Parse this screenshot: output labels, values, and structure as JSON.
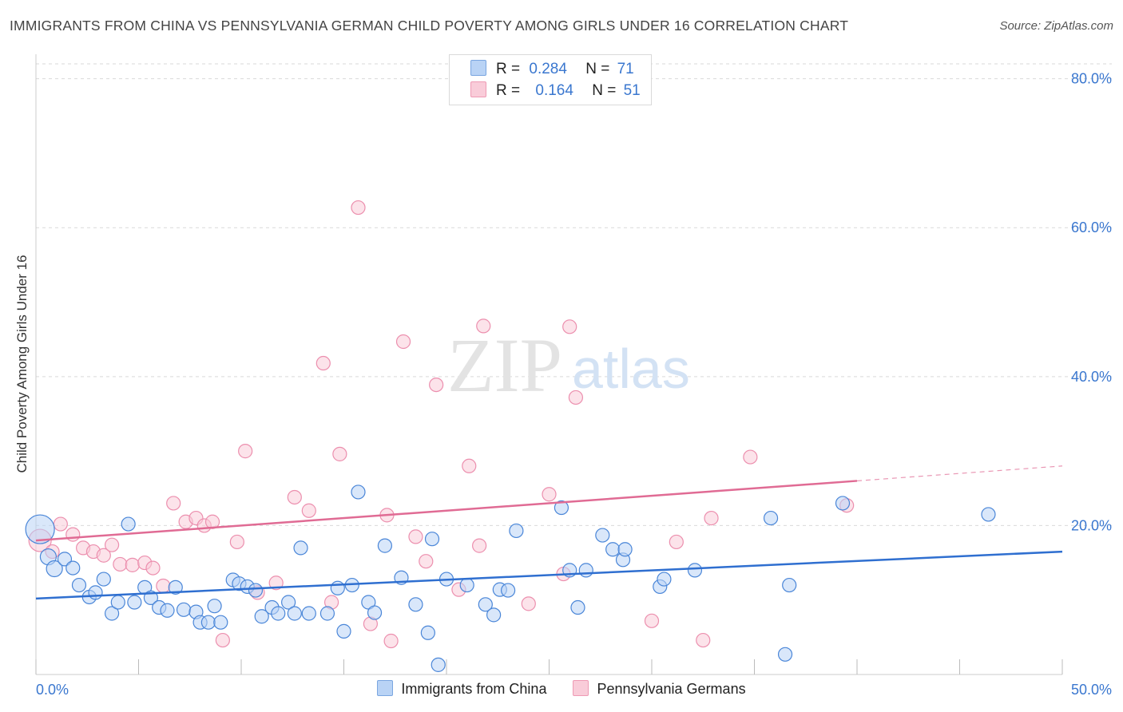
{
  "title": "IMMIGRANTS FROM CHINA VS PENNSYLVANIA GERMAN CHILD POVERTY AMONG GIRLS UNDER 16 CORRELATION CHART",
  "source": "Source: ZipAtlas.com",
  "watermark": {
    "zip": "ZIP",
    "atlas": "atlas"
  },
  "colors": {
    "blue": "#4a86d8",
    "blue_fill": "#b9d3f5",
    "blue_line": "#2f6fd0",
    "pink": "#ec8fae",
    "pink_fill": "#f9ccd9",
    "pink_line": "#e06b94",
    "axis_label": "#3a77cf",
    "grid": "#d9d9d9"
  },
  "legend_top": {
    "r_label": "R =",
    "n_label": "N =",
    "series": [
      {
        "r": "0.284",
        "n": "71"
      },
      {
        "r": "0.164",
        "n": "51"
      }
    ]
  },
  "legend_bottom": [
    "Immigrants from China",
    "Pennsylvania Germans"
  ],
  "chart_data": {
    "type": "scatter",
    "title": "IMMIGRANTS FROM CHINA VS PENNSYLVANIA GERMAN CHILD POVERTY AMONG GIRLS UNDER 16 CORRELATION CHART",
    "xlabel": "",
    "ylabel": "Child Poverty Among Girls Under 16",
    "xlim": [
      0,
      50
    ],
    "ylim": [
      0,
      82
    ],
    "x_tick_labels": [
      "0.0%",
      "50.0%"
    ],
    "y_ticks": [
      20,
      40,
      60,
      80
    ],
    "y_tick_labels": [
      "20.0%",
      "40.0%",
      "60.0%",
      "80.0%"
    ],
    "grid": true,
    "legend_position": "top-center",
    "series": [
      {
        "name": "Immigrants from China",
        "color": "#4a86d8",
        "r": 0.284,
        "n": 71,
        "trend": {
          "x": [
            0,
            50
          ],
          "y": [
            10.2,
            16.5
          ]
        },
        "points": [
          [
            0.2,
            19.5
          ],
          [
            0.6,
            15.8
          ],
          [
            0.9,
            14.2
          ],
          [
            1.4,
            15.5
          ],
          [
            1.8,
            14.3
          ],
          [
            2.1,
            12.0
          ],
          [
            2.6,
            10.4
          ],
          [
            2.9,
            11.0
          ],
          [
            3.3,
            12.8
          ],
          [
            3.7,
            8.2
          ],
          [
            4.0,
            9.7
          ],
          [
            4.5,
            20.2
          ],
          [
            4.8,
            9.7
          ],
          [
            5.3,
            11.7
          ],
          [
            5.6,
            10.3
          ],
          [
            6.0,
            9.0
          ],
          [
            6.4,
            8.6
          ],
          [
            6.8,
            11.7
          ],
          [
            7.2,
            8.7
          ],
          [
            7.8,
            8.4
          ],
          [
            8.0,
            7.0
          ],
          [
            8.4,
            7.0
          ],
          [
            8.7,
            9.2
          ],
          [
            9.0,
            7.0
          ],
          [
            9.6,
            12.7
          ],
          [
            9.9,
            12.2
          ],
          [
            10.3,
            11.8
          ],
          [
            10.7,
            11.3
          ],
          [
            11.0,
            7.8
          ],
          [
            11.5,
            9.0
          ],
          [
            11.8,
            8.2
          ],
          [
            12.3,
            9.7
          ],
          [
            12.6,
            8.2
          ],
          [
            12.9,
            17.0
          ],
          [
            13.3,
            8.2
          ],
          [
            14.2,
            8.2
          ],
          [
            14.7,
            11.6
          ],
          [
            15.0,
            5.8
          ],
          [
            15.4,
            12.0
          ],
          [
            15.7,
            24.5
          ],
          [
            16.2,
            9.7
          ],
          [
            16.5,
            8.3
          ],
          [
            17.0,
            17.3
          ],
          [
            17.8,
            13.0
          ],
          [
            18.5,
            9.4
          ],
          [
            19.1,
            5.6
          ],
          [
            19.3,
            18.2
          ],
          [
            19.6,
            1.3
          ],
          [
            20.0,
            12.8
          ],
          [
            21.0,
            12.0
          ],
          [
            21.9,
            9.4
          ],
          [
            22.3,
            8.0
          ],
          [
            22.6,
            11.4
          ],
          [
            23.0,
            11.3
          ],
          [
            23.4,
            19.3
          ],
          [
            25.6,
            22.4
          ],
          [
            26.0,
            14.0
          ],
          [
            26.4,
            9.0
          ],
          [
            26.8,
            14.0
          ],
          [
            27.6,
            18.7
          ],
          [
            28.1,
            16.8
          ],
          [
            28.6,
            15.4
          ],
          [
            28.7,
            16.8
          ],
          [
            30.4,
            11.8
          ],
          [
            30.6,
            12.8
          ],
          [
            32.1,
            14.0
          ],
          [
            35.8,
            21.0
          ],
          [
            36.5,
            2.7
          ],
          [
            36.7,
            12.0
          ],
          [
            39.3,
            23.0
          ],
          [
            46.4,
            21.5
          ]
        ]
      },
      {
        "name": "Pennsylvania Germans",
        "color": "#ec8fae",
        "r": 0.164,
        "n": 51,
        "trend": {
          "x": [
            0,
            40
          ],
          "y": [
            18.0,
            26.0
          ]
        },
        "trend_extended": {
          "x": [
            40,
            50
          ],
          "y": [
            26.0,
            28.0
          ]
        },
        "points": [
          [
            0.2,
            18.0
          ],
          [
            0.8,
            16.5
          ],
          [
            1.2,
            20.2
          ],
          [
            1.8,
            18.8
          ],
          [
            2.3,
            17.0
          ],
          [
            2.8,
            16.5
          ],
          [
            3.3,
            16.0
          ],
          [
            3.7,
            17.4
          ],
          [
            4.1,
            14.8
          ],
          [
            4.7,
            14.7
          ],
          [
            5.3,
            15.0
          ],
          [
            5.7,
            14.3
          ],
          [
            6.2,
            11.9
          ],
          [
            6.7,
            23.0
          ],
          [
            7.3,
            20.5
          ],
          [
            7.8,
            21.0
          ],
          [
            8.2,
            20.0
          ],
          [
            8.6,
            20.5
          ],
          [
            9.1,
            4.6
          ],
          [
            9.8,
            17.8
          ],
          [
            10.2,
            30.0
          ],
          [
            10.8,
            11.0
          ],
          [
            11.7,
            12.3
          ],
          [
            12.6,
            23.8
          ],
          [
            13.3,
            22.0
          ],
          [
            14.0,
            41.8
          ],
          [
            14.4,
            9.7
          ],
          [
            14.8,
            29.6
          ],
          [
            15.7,
            62.7
          ],
          [
            16.3,
            6.8
          ],
          [
            17.1,
            21.4
          ],
          [
            17.3,
            4.5
          ],
          [
            17.9,
            44.7
          ],
          [
            18.5,
            18.5
          ],
          [
            19.0,
            15.2
          ],
          [
            19.5,
            38.9
          ],
          [
            20.6,
            11.4
          ],
          [
            21.1,
            28.0
          ],
          [
            21.6,
            17.3
          ],
          [
            21.8,
            46.8
          ],
          [
            24.0,
            9.5
          ],
          [
            25.0,
            24.2
          ],
          [
            25.7,
            13.5
          ],
          [
            26.0,
            46.7
          ],
          [
            26.3,
            37.2
          ],
          [
            30.0,
            7.2
          ],
          [
            31.2,
            17.8
          ],
          [
            32.5,
            4.6
          ],
          [
            32.9,
            21.0
          ],
          [
            34.8,
            29.2
          ],
          [
            39.5,
            22.7
          ]
        ]
      }
    ]
  }
}
